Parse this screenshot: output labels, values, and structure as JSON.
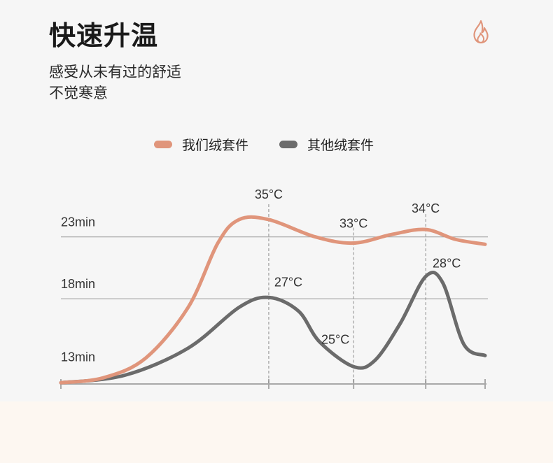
{
  "header": {
    "title": "快速升温",
    "subtitle_line1": "感受从未有过的舒适",
    "subtitle_line2": "不觉寒意",
    "icon": "flame-icon"
  },
  "colors": {
    "ours": "#e0957b",
    "others": "#6b6b6b",
    "icon": "#e0957b"
  },
  "chart_data": {
    "type": "line",
    "title": "",
    "xlabel": "",
    "ylabel": "",
    "y_ticks": [
      {
        "value": 23,
        "label": "23min"
      },
      {
        "value": 18,
        "label": "18min"
      },
      {
        "value": 13,
        "label": "13min"
      }
    ],
    "ylim": [
      11.1,
      25.7
    ],
    "xlim": [
      0,
      1
    ],
    "series": [
      {
        "name": "我们绒套件",
        "color": "#e0957b",
        "points": [
          [
            0,
            11.2
          ],
          [
            0.1,
            11.6
          ],
          [
            0.2,
            13.2
          ],
          [
            0.3,
            17.3
          ],
          [
            0.37,
            22.5
          ],
          [
            0.42,
            24.4
          ],
          [
            0.49,
            24.4
          ],
          [
            0.6,
            23.0
          ],
          [
            0.69,
            22.5
          ],
          [
            0.78,
            23.2
          ],
          [
            0.86,
            23.6
          ],
          [
            0.93,
            22.8
          ],
          [
            1.0,
            22.4
          ]
        ]
      },
      {
        "name": "其他绒套件",
        "color": "#6b6b6b",
        "points": [
          [
            0,
            11.2
          ],
          [
            0.15,
            11.8
          ],
          [
            0.3,
            14.0
          ],
          [
            0.42,
            17.3
          ],
          [
            0.49,
            18.1
          ],
          [
            0.56,
            17.0
          ],
          [
            0.61,
            14.5
          ],
          [
            0.69,
            12.5
          ],
          [
            0.74,
            13.0
          ],
          [
            0.8,
            16.0
          ],
          [
            0.86,
            19.8
          ],
          [
            0.9,
            19.3
          ],
          [
            0.95,
            14.3
          ],
          [
            1.0,
            13.4
          ]
        ]
      }
    ],
    "annotations": [
      {
        "label": "35°C",
        "x": 0.49,
        "y": 24.4,
        "guide": true
      },
      {
        "label": "33°C",
        "x": 0.69,
        "y": 22.5,
        "guide": true
      },
      {
        "label": "34°C",
        "x": 0.86,
        "y": 23.6,
        "guide": true
      },
      {
        "label": "27°C",
        "x": 0.49,
        "y": 18.1,
        "guide": false
      },
      {
        "label": "25°C",
        "x": 0.69,
        "y": 12.5,
        "guide": false
      },
      {
        "label": "28°C",
        "x": 0.86,
        "y": 19.8,
        "guide": false
      }
    ],
    "x_ticks": [
      0,
      0.49,
      0.69,
      0.86,
      1.0
    ],
    "grid": true,
    "legend": "top"
  }
}
